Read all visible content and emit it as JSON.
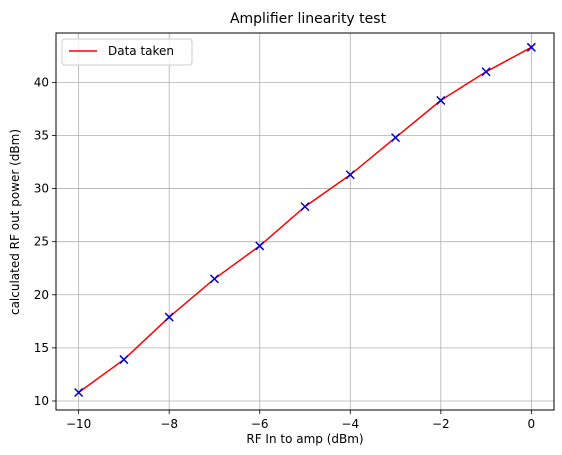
{
  "chart_data": {
    "type": "line",
    "title": "Amplifier linearity test",
    "xlabel": "RF In to amp (dBm)",
    "ylabel": "calculated RF out power (dBm)",
    "xlim": [
      -10.5,
      0.5
    ],
    "ylim": [
      9.15,
      44.65
    ],
    "x_ticks": [
      -10,
      -8,
      -6,
      -4,
      -2,
      0
    ],
    "x_tick_labels": [
      "−10",
      "−8",
      "−6",
      "−4",
      "−2",
      "0"
    ],
    "y_ticks": [
      10,
      15,
      20,
      25,
      30,
      35,
      40
    ],
    "y_tick_labels": [
      "10",
      "15",
      "20",
      "25",
      "30",
      "35",
      "40"
    ],
    "grid": true,
    "legend": {
      "position": "upper-left",
      "entries": [
        "Data taken"
      ]
    },
    "series": [
      {
        "name": "Data taken",
        "color": "#ff0000",
        "marker_color": "#0000cc",
        "marker": "x",
        "x": [
          -10,
          -9,
          -8,
          -7,
          -6,
          -5,
          -4,
          -3,
          -2,
          -1,
          0
        ],
        "y": [
          10.8,
          13.9,
          17.9,
          21.5,
          24.6,
          28.3,
          31.3,
          34.8,
          38.3,
          41.0,
          43.3
        ]
      }
    ]
  }
}
